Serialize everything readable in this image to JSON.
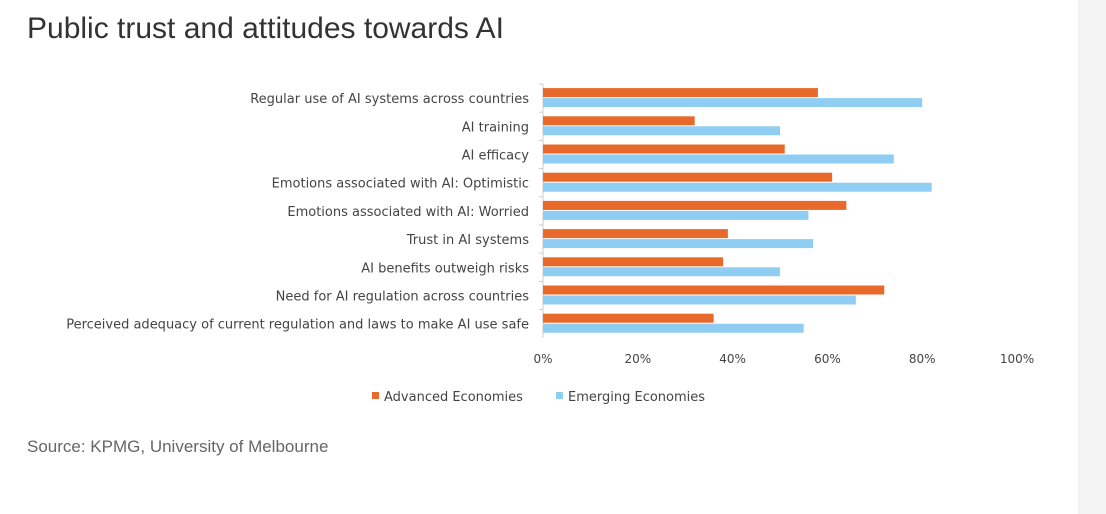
{
  "title": "Public trust and attitudes towards AI",
  "source": "Source: KPMG, University of Melbourne",
  "chart_data": {
    "type": "bar",
    "orientation": "horizontal",
    "title": "Public trust and attitudes towards AI",
    "categories": [
      "Regular use of AI systems across countries",
      "AI training",
      "AI efficacy",
      "Emotions associated with AI: Optimistic",
      "Emotions associated with AI: Worried",
      "Trust in AI systems",
      "AI benefits outweigh risks",
      "Need for AI regulation across countries",
      "Perceived adequacy of current regulation and laws to make AI use safe"
    ],
    "series": [
      {
        "name": "Advanced Economies",
        "color": "#e8692a",
        "values": [
          58,
          32,
          51,
          61,
          64,
          39,
          38,
          72,
          36
        ]
      },
      {
        "name": "Emerging Economies",
        "color": "#8fcdf3",
        "values": [
          80,
          50,
          74,
          82,
          56,
          57,
          50,
          66,
          55
        ]
      }
    ],
    "xlim": [
      0,
      100
    ],
    "xticks": [
      "0%",
      "20%",
      "40%",
      "60%",
      "80%",
      "100%"
    ],
    "legend": "bottom",
    "grid": false
  }
}
